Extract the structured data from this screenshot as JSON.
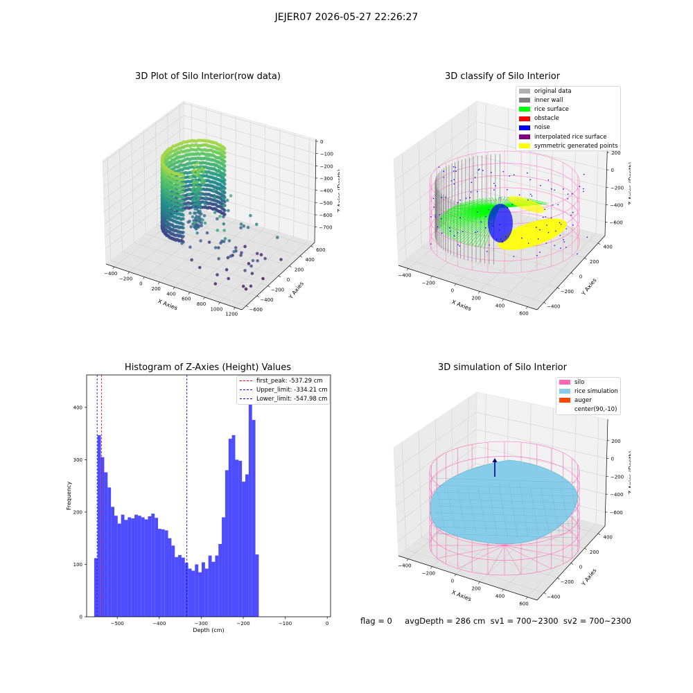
{
  "figure": {
    "suptitle": "JEJER07 2026-05-27 22:26:27",
    "footer": "flag = 0     avgDepth = 286 cm  sv1 = 700~2300  sv2 = 700~2300"
  },
  "chart_data": [
    {
      "id": "raw",
      "type": "scatter",
      "title": "3D Plot of Silo Interior(row data)",
      "xlabel": "X Axies",
      "ylabel": "Y Axies",
      "zlabel": "Z Axies (Depth)",
      "x_ticks": [
        "−400",
        "−200",
        "0",
        "200",
        "400",
        "600",
        "800",
        "1000",
        "1200"
      ],
      "y_ticks": [
        "−600",
        "−400",
        "−200",
        "0",
        "200",
        "400",
        "600"
      ],
      "z_ticks": [
        "0",
        "−100",
        "−200",
        "−300",
        "−400",
        "−500",
        "−600",
        "−700"
      ],
      "xlim": [
        -450,
        1250
      ],
      "ylim": [
        -650,
        650
      ],
      "zlim": [
        -750,
        0
      ],
      "colormap": "viridis",
      "grid": true
    },
    {
      "id": "classify",
      "type": "scatter",
      "title": "3D classify of Silo Interior",
      "xlabel": "X Axies",
      "ylabel": "Y Axies",
      "zlabel": "Z Axies (Depth)",
      "x_ticks": [
        "−400",
        "−200",
        "0",
        "200",
        "400",
        "600"
      ],
      "y_ticks": [
        "−400",
        "−200",
        "0",
        "200",
        "400"
      ],
      "z_ticks": [
        "200",
        "0",
        "−200",
        "−400",
        "−600"
      ],
      "legend_position": "top-right",
      "legend": [
        {
          "label": "original data",
          "color": "#b0b0b0"
        },
        {
          "label": "inner wall",
          "color": "#808080"
        },
        {
          "label": "rice surface",
          "color": "#00ff00"
        },
        {
          "label": "obstacle",
          "color": "#ff0000"
        },
        {
          "label": "noise",
          "color": "#0000ff"
        },
        {
          "label": "interpolated rice surface",
          "color": "#800080"
        },
        {
          "label": "symmetric generated points",
          "color": "#ffff00"
        }
      ],
      "silo_color": "#ff80c0",
      "grid": true
    },
    {
      "id": "histogram",
      "type": "bar",
      "title": "Histogram of Z-Axies (Height) Values",
      "xlabel": "Depth (cm)",
      "ylabel": "Frequency",
      "xlim": [
        -573,
        8
      ],
      "ylim": [
        0,
        462
      ],
      "x_ticks": [
        -500,
        -400,
        -300,
        -200,
        -100,
        0
      ],
      "x_tick_labels": [
        "−500",
        "−400",
        "−300",
        "−200",
        "−100",
        "0"
      ],
      "y_ticks": [
        0,
        100,
        200,
        300,
        400
      ],
      "bin_start": -555,
      "bin_width": 8,
      "values": [
        112,
        347,
        305,
        276,
        247,
        210,
        193,
        178,
        195,
        185,
        190,
        188,
        195,
        193,
        190,
        186,
        192,
        197,
        189,
        168,
        167,
        165,
        150,
        136,
        114,
        118,
        113,
        103,
        92,
        88,
        100,
        85,
        104,
        92,
        117,
        105,
        117,
        139,
        190,
        280,
        340,
        347,
        300,
        298,
        258,
        272,
        437,
        376,
        119
      ],
      "bar_color": "#4d4dff",
      "lines": [
        {
          "label": "first_peak: -537.29 cm",
          "value": -537.29,
          "color": "#ff0000"
        },
        {
          "label": "Upper_limit: -334.21 cm",
          "value": -334.21,
          "color": "#0000cc"
        },
        {
          "label": "Lower_limit: -547.98 cm",
          "value": -547.98,
          "color": "#0000cc"
        }
      ],
      "legend_position": "top-right"
    },
    {
      "id": "simulation",
      "type": "surface",
      "title": "3D simulation of Silo Interior",
      "xlabel": "X Axies",
      "ylabel": "Y Axies",
      "zlabel": "Z Axies (Depth)",
      "x_ticks": [
        "−400",
        "−200",
        "0",
        "200",
        "400",
        "600"
      ],
      "y_ticks": [
        "−400",
        "−200",
        "0",
        "200",
        "400"
      ],
      "z_ticks": [
        "200",
        "0",
        "−200",
        "−400",
        "−600"
      ],
      "legend_position": "top-right",
      "legend": [
        {
          "label": "silo",
          "color": "#ff69b4"
        },
        {
          "label": "rice simulation",
          "color": "#87cdea"
        },
        {
          "label": "auger",
          "color": "#ff4500"
        },
        {
          "label": "center(90,-10)",
          "color": "#ffffff"
        }
      ],
      "grid": true
    }
  ]
}
